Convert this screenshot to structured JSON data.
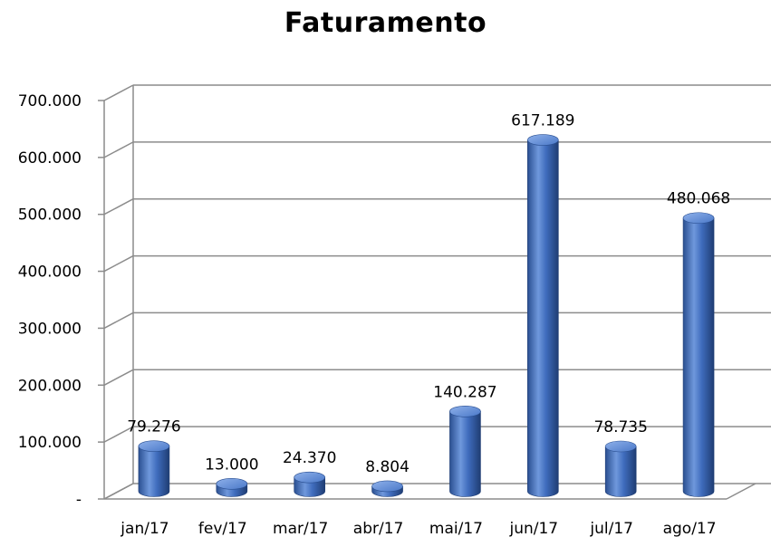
{
  "chart_data": {
    "type": "bar",
    "title": "Faturamento",
    "categories": [
      "jan/17",
      "fev/17",
      "mar/17",
      "abr/17",
      "mai/17",
      "jun/17",
      "jul/17",
      "ago/17"
    ],
    "values": [
      79276,
      13000,
      24370,
      8804,
      140287,
      617189,
      78735,
      480068
    ],
    "value_labels": [
      "79.276",
      "13.000",
      "24.370",
      "8.804",
      "140.287",
      "617.189",
      "78.735",
      "480.068"
    ],
    "ylim": [
      0,
      700000
    ],
    "yticks": [
      0,
      100000,
      200000,
      300000,
      400000,
      500000,
      600000,
      700000
    ],
    "ytick_labels": [
      "-",
      "100.000",
      "200.000",
      "300.000",
      "400.000",
      "500.000",
      "600.000",
      "700.000"
    ],
    "grid": true,
    "legend": "none",
    "style": "3d-cylinder",
    "bar_color": "#4472C4"
  }
}
